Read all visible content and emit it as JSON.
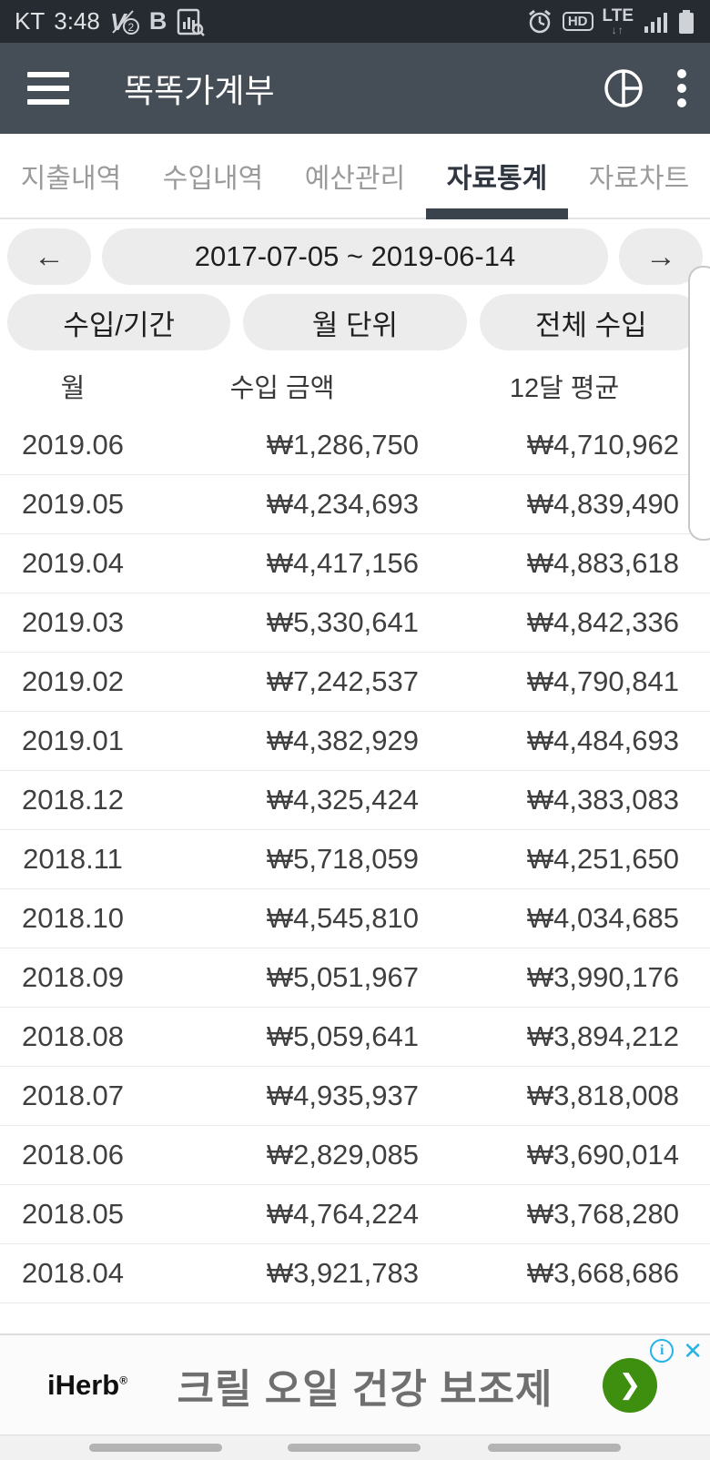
{
  "colors": {
    "statusbar_bg": "#262b31",
    "appbar_bg": "#454d57",
    "tab_active": "#2f3640",
    "tab_indicator": "#3a424c",
    "pill_bg": "#ececec",
    "ad_green": "#3e8e0f",
    "ad_blue": "#27b2e8"
  },
  "statusbar": {
    "carrier": "KT",
    "time": "3:48",
    "hd_label": "HD",
    "lte_label": "LTE",
    "lte_arrows": "↓↑",
    "b_glyph": "B",
    "icons": [
      "v-badge-icon",
      "b-app-icon",
      "chart-doc-icon",
      "alarm-icon",
      "hd-icon",
      "lte-icon",
      "signal-icon",
      "battery-icon"
    ]
  },
  "appbar": {
    "title": "똑똑가계부",
    "icons": [
      "hamburger-icon",
      "pie-chart-icon",
      "overflow-menu-icon"
    ]
  },
  "tabs": {
    "active_index": 3,
    "items": [
      {
        "label": "지출내역"
      },
      {
        "label": "수입내역"
      },
      {
        "label": "예산관리"
      },
      {
        "label": "자료통계"
      },
      {
        "label": "자료차트"
      }
    ]
  },
  "controls": {
    "prev_arrow": "←",
    "next_arrow": "→",
    "date_range": "2017-07-05 ~ 2019-06-14",
    "filters": [
      "수입/기간",
      "월 단위",
      "전체 수입"
    ]
  },
  "table": {
    "columns": [
      "월",
      "수입 금액",
      "12달 평균"
    ],
    "rows": [
      [
        "2019.06",
        "₩1,286,750",
        "₩4,710,962"
      ],
      [
        "2019.05",
        "₩4,234,693",
        "₩4,839,490"
      ],
      [
        "2019.04",
        "₩4,417,156",
        "₩4,883,618"
      ],
      [
        "2019.03",
        "₩5,330,641",
        "₩4,842,336"
      ],
      [
        "2019.02",
        "₩7,242,537",
        "₩4,790,841"
      ],
      [
        "2019.01",
        "₩4,382,929",
        "₩4,484,693"
      ],
      [
        "2018.12",
        "₩4,325,424",
        "₩4,383,083"
      ],
      [
        "2018.11",
        "₩5,718,059",
        "₩4,251,650"
      ],
      [
        "2018.10",
        "₩4,545,810",
        "₩4,034,685"
      ],
      [
        "2018.09",
        "₩5,051,967",
        "₩3,990,176"
      ],
      [
        "2018.08",
        "₩5,059,641",
        "₩3,894,212"
      ],
      [
        "2018.07",
        "₩4,935,937",
        "₩3,818,008"
      ],
      [
        "2018.06",
        "₩2,829,085",
        "₩3,690,014"
      ],
      [
        "2018.05",
        "₩4,764,224",
        "₩3,768,280"
      ],
      [
        "2018.04",
        "₩3,921,783",
        "₩3,668,686"
      ]
    ]
  },
  "ad": {
    "brand": "iHerb",
    "brand_mark": "®",
    "headline": "크릴 오일 건강 보조제",
    "cta_arrow": "❯",
    "info_glyph": "i",
    "close_glyph": "✕"
  }
}
